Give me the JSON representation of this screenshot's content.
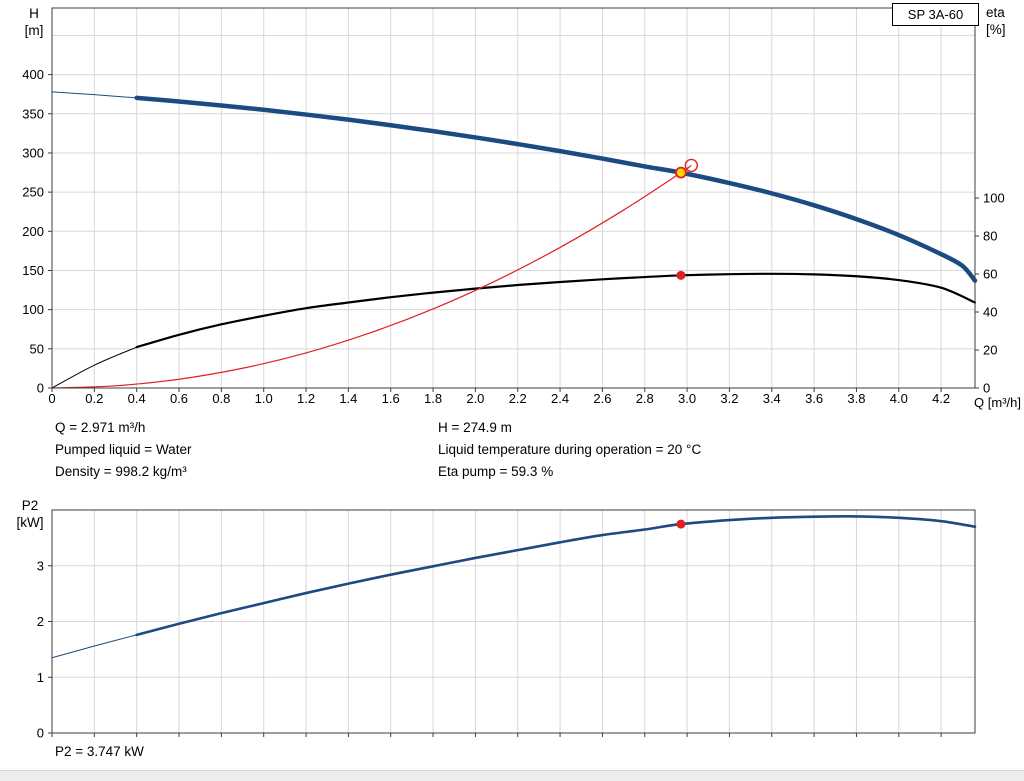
{
  "labels": {
    "pump_model": "SP 3A-60",
    "h": "H",
    "h_unit": "[m]",
    "eta": "eta",
    "eta_unit": "[%]",
    "q_axis": "Q [m³/h]",
    "p2": "P2",
    "p2_unit": "[kW]"
  },
  "info": {
    "left": [
      "Q = 2.971 m³/h",
      "Pumped liquid = Water",
      "Density = 998.2 kg/m³"
    ],
    "right": [
      "H = 274.9 m",
      "Liquid temperature during operation = 20 °C",
      "Eta pump = 59.3 %"
    ],
    "p2_value": "P2 = 3.747 kW"
  },
  "colors": {
    "curve_blue": "#1c4b82",
    "curve_black": "#000000",
    "curve_red": "#e02020",
    "duty_yellow": "#ffd800",
    "grid": "#d8d8d8",
    "frame": "#3c3c3c",
    "text": "#000000"
  },
  "chart_data": [
    {
      "id": "hq",
      "type": "line",
      "title": "SP 3A-60",
      "legend_position": "none",
      "grid": true,
      "x": {
        "label": "Q [m³/h]",
        "min": 0,
        "max": 4.36,
        "tick_step": 0.2,
        "tick_labels": [
          "0",
          "0.2",
          "0.4",
          "0.6",
          "0.8",
          "1.0",
          "1.2",
          "1.4",
          "1.6",
          "1.8",
          "2.0",
          "2.2",
          "2.4",
          "2.6",
          "2.8",
          "3.0",
          "3.2",
          "3.4",
          "3.6",
          "3.8",
          "4.0",
          "4.2"
        ]
      },
      "y_left": {
        "label": "H [m]",
        "min": 0,
        "max": 485,
        "grid_step": 50,
        "tick_labels": [
          "0",
          "50",
          "100",
          "150",
          "200",
          "250",
          "300",
          "350",
          "400"
        ]
      },
      "y_right": {
        "label": "eta [%]",
        "min": 0,
        "max": 200,
        "tick_step": 20,
        "tick_labels": [
          "0",
          "20",
          "40",
          "60",
          "80",
          "100"
        ]
      },
      "series": [
        {
          "name": "pump-head",
          "axis": "left",
          "color_key": "curve_blue",
          "width": 4.5,
          "thin_until": 0.4,
          "points": [
            [
              0,
              378
            ],
            [
              0.2,
              374.4
            ],
            [
              0.4,
              370.3
            ],
            [
              0.6,
              365.7
            ],
            [
              0.8,
              360.6
            ],
            [
              1.0,
              355.1
            ],
            [
              1.2,
              349.0
            ],
            [
              1.4,
              342.5
            ],
            [
              1.6,
              335.4
            ],
            [
              1.8,
              327.9
            ],
            [
              2.0,
              319.8
            ],
            [
              2.2,
              311.3
            ],
            [
              2.4,
              302.3
            ],
            [
              2.6,
              292.8
            ],
            [
              2.8,
              282.8
            ],
            [
              2.971,
              274.9
            ],
            [
              3.2,
              261.6
            ],
            [
              3.4,
              248.4
            ],
            [
              3.6,
              233.2
            ],
            [
              3.8,
              215.6
            ],
            [
              4.0,
              195.2
            ],
            [
              4.2,
              170.8
            ],
            [
              4.3,
              156.0
            ],
            [
              4.36,
              137.0
            ]
          ]
        },
        {
          "name": "efficiency",
          "axis": "right",
          "color_key": "curve_black",
          "width": 2.2,
          "thin_until": 0.4,
          "points": [
            [
              0,
              0
            ],
            [
              0.2,
              12.0
            ],
            [
              0.4,
              21.5
            ],
            [
              0.6,
              28.0
            ],
            [
              0.8,
              33.5
            ],
            [
              1.0,
              38.0
            ],
            [
              1.2,
              42.0
            ],
            [
              1.4,
              45.0
            ],
            [
              1.6,
              47.8
            ],
            [
              1.8,
              50.2
            ],
            [
              2.0,
              52.3
            ],
            [
              2.2,
              54.2
            ],
            [
              2.4,
              55.8
            ],
            [
              2.6,
              57.2
            ],
            [
              2.8,
              58.4
            ],
            [
              2.971,
              59.3
            ],
            [
              3.2,
              59.9
            ],
            [
              3.4,
              60.1
            ],
            [
              3.6,
              59.8
            ],
            [
              3.8,
              58.8
            ],
            [
              4.0,
              56.8
            ],
            [
              4.2,
              52.8
            ],
            [
              4.36,
              45.0
            ]
          ]
        },
        {
          "name": "system-curve",
          "axis": "left",
          "color_key": "curve_red",
          "width": 1.2,
          "points": [
            [
              0,
              0
            ],
            [
              0.3,
              2.8
            ],
            [
              0.6,
              11.2
            ],
            [
              0.9,
              25.2
            ],
            [
              1.2,
              44.8
            ],
            [
              1.5,
              70.1
            ],
            [
              1.8,
              100.9
            ],
            [
              2.1,
              137.3
            ],
            [
              2.4,
              179.4
            ],
            [
              2.7,
              227.1
            ],
            [
              2.971,
              274.9
            ],
            [
              3.02,
              284.1
            ]
          ]
        }
      ],
      "markers": [
        {
          "name": "requested-duty-marker",
          "axis": "left",
          "q": 3.02,
          "v": 284.1,
          "r": 6,
          "style": "open",
          "color_key": "curve_red"
        },
        {
          "name": "duty-point-marker",
          "axis": "left",
          "q": 2.971,
          "v": 274.9,
          "r": 5,
          "style": "filled-ring",
          "fill_key": "duty_yellow",
          "stroke_key": "curve_red"
        },
        {
          "name": "efficiency-point-marker",
          "axis": "right",
          "q": 2.971,
          "v": 59.3,
          "r": 4.5,
          "style": "dot",
          "color_key": "curve_red"
        }
      ]
    },
    {
      "id": "p2",
      "type": "line",
      "title": "P2 [kW]",
      "legend_position": "none",
      "grid": true,
      "x": {
        "label": "",
        "min": 0,
        "max": 4.36,
        "tick_step": 0.2,
        "tick_labels": []
      },
      "y_left": {
        "label": "P2 [kW]",
        "min": 0,
        "max": 4,
        "grid_step": 1,
        "tick_labels": [
          "0",
          "1",
          "2",
          "3"
        ]
      },
      "series": [
        {
          "name": "p2-power",
          "axis": "left",
          "color_key": "curve_blue",
          "width": 2.6,
          "thin_until": 0.4,
          "points": [
            [
              0,
              1.35
            ],
            [
              0.2,
              1.56
            ],
            [
              0.4,
              1.76
            ],
            [
              0.6,
              1.96
            ],
            [
              0.8,
              2.15
            ],
            [
              1.0,
              2.33
            ],
            [
              1.2,
              2.51
            ],
            [
              1.4,
              2.68
            ],
            [
              1.6,
              2.84
            ],
            [
              1.8,
              2.99
            ],
            [
              2.0,
              3.14
            ],
            [
              2.2,
              3.28
            ],
            [
              2.4,
              3.42
            ],
            [
              2.6,
              3.55
            ],
            [
              2.8,
              3.65
            ],
            [
              2.971,
              3.747
            ],
            [
              3.2,
              3.82
            ],
            [
              3.4,
              3.86
            ],
            [
              3.6,
              3.88
            ],
            [
              3.8,
              3.885
            ],
            [
              4.0,
              3.86
            ],
            [
              4.2,
              3.8
            ],
            [
              4.36,
              3.7
            ]
          ]
        }
      ],
      "markers": [
        {
          "name": "p2-point-marker",
          "axis": "left",
          "q": 2.971,
          "v": 3.747,
          "r": 4.5,
          "style": "dot",
          "color_key": "curve_red"
        }
      ]
    }
  ]
}
